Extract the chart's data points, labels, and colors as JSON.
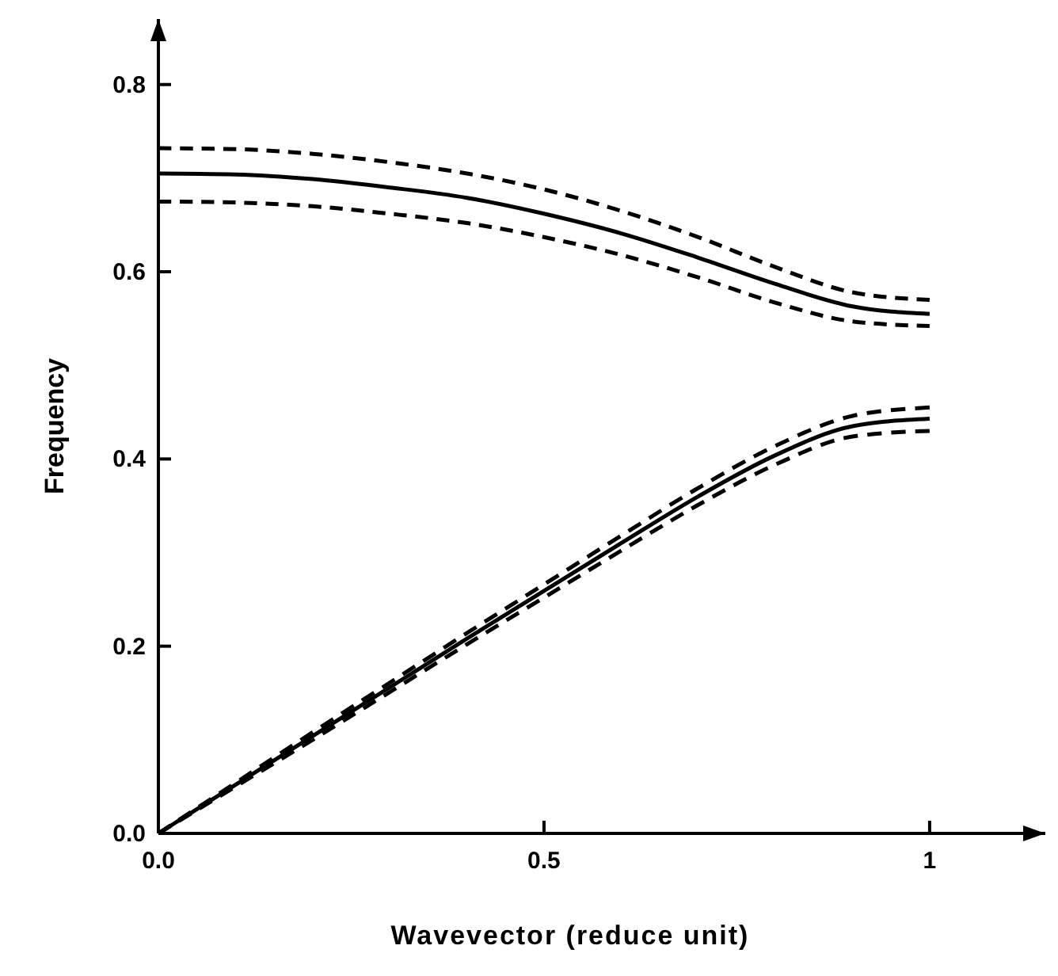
{
  "chart_data": {
    "type": "line",
    "xlabel": "Wavevector  (reduce unit)",
    "ylabel": "Frequency",
    "x": [
      0,
      0.1,
      0.2,
      0.3,
      0.4,
      0.5,
      0.6,
      0.7,
      0.8,
      0.9,
      1.0
    ],
    "xlim": [
      0,
      1.15
    ],
    "ylim": [
      0,
      0.87
    ],
    "xticks": [
      {
        "value": 0,
        "label": "0.0"
      },
      {
        "value": 0.5,
        "label": "0.5"
      },
      1
    ],
    "yticks": [
      {
        "value": 0,
        "label": "0.0"
      },
      {
        "value": 0.2,
        "label": "0.2"
      },
      {
        "value": 0.4,
        "label": "0.4"
      },
      {
        "value": 0.6,
        "label": "0.6"
      },
      {
        "value": 0.8,
        "label": "0.8"
      }
    ],
    "grid": false,
    "marker": "none",
    "series": [
      {
        "color": "#000000",
        "line_style": "solid",
        "values": [
          0.705,
          0.704,
          0.699,
          0.69,
          0.679,
          0.662,
          0.641,
          0.615,
          0.587,
          0.563,
          0.555
        ]
      },
      {
        "color": "#000000",
        "line_style": "dashed",
        "values": [
          0.732,
          0.731,
          0.726,
          0.717,
          0.705,
          0.688,
          0.665,
          0.637,
          0.605,
          0.578,
          0.57
        ]
      },
      {
        "color": "#000000",
        "line_style": "dashed",
        "values": [
          0.675,
          0.674,
          0.67,
          0.662,
          0.652,
          0.637,
          0.618,
          0.594,
          0.567,
          0.547,
          0.542
        ]
      },
      {
        "color": "#000000",
        "line_style": "solid",
        "values": [
          0,
          0.052,
          0.104,
          0.156,
          0.208,
          0.259,
          0.31,
          0.36,
          0.404,
          0.435,
          0.443
        ]
      },
      {
        "color": "#000000",
        "line_style": "dashed",
        "values": [
          0,
          0.054,
          0.108,
          0.161,
          0.214,
          0.266,
          0.318,
          0.369,
          0.414,
          0.446,
          0.455
        ]
      },
      {
        "color": "#000000",
        "line_style": "dashed",
        "values": [
          0,
          0.05,
          0.1,
          0.151,
          0.202,
          0.252,
          0.302,
          0.351,
          0.394,
          0.424,
          0.43
        ]
      }
    ]
  }
}
